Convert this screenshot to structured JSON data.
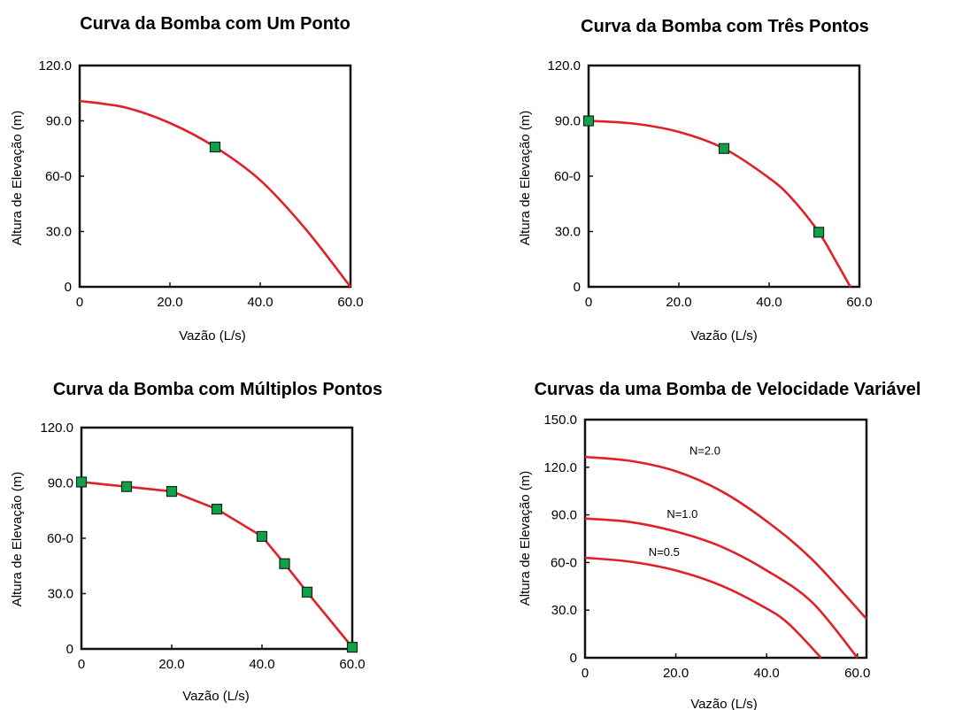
{
  "chart_data": [
    {
      "type": "line",
      "title": "Curva da Bomba com Um Ponto",
      "xlabel": "Vazão (L/s)",
      "ylabel": "Altura de Elevação (m)",
      "xlim": [
        0,
        60
      ],
      "ylim": [
        0,
        120
      ],
      "x_ticks": [
        "0",
        "20.0",
        "40.0",
        "60.0"
      ],
      "y_ticks": [
        "0",
        "30.0",
        "60-0",
        "90.0",
        "120.0"
      ],
      "points": [
        {
          "x": 30,
          "y": 75.8
        }
      ],
      "series": [
        {
          "name": "",
          "x": [
            0,
            10,
            20,
            30,
            40,
            50,
            60
          ],
          "y": [
            100.8,
            97.3,
            88.8,
            75.8,
            57.8,
            31.5,
            0
          ]
        }
      ]
    },
    {
      "type": "line",
      "title": "Curva da Bomba com Três Pontos",
      "xlabel": "Vazão (L/s)",
      "ylabel": "Altura de Elevação (m)",
      "xlim": [
        0,
        60
      ],
      "ylim": [
        0,
        120
      ],
      "x_ticks": [
        "0",
        "20.0",
        "40.0",
        "60.0"
      ],
      "y_ticks": [
        "0",
        "30.0",
        "60-0",
        "90.0",
        "120.0"
      ],
      "points": [
        {
          "x": 0,
          "y": 90
        },
        {
          "x": 30,
          "y": 75
        },
        {
          "x": 51,
          "y": 29.6
        }
      ],
      "series": [
        {
          "name": "",
          "x": [
            0,
            10,
            20,
            30,
            40,
            45,
            51,
            55,
            58
          ],
          "y": [
            90,
            88.5,
            84,
            75,
            59,
            48,
            29.6,
            13,
            0
          ]
        }
      ]
    },
    {
      "type": "line",
      "title": "Curva da Bomba com Múltiplos Pontos",
      "xlabel": "Vazão (L/s)",
      "ylabel": "Altura de Elevação (m)",
      "xlim": [
        0,
        60
      ],
      "ylim": [
        0,
        120
      ],
      "x_ticks": [
        "0",
        "20.0",
        "40.0",
        "60.0"
      ],
      "y_ticks": [
        "0",
        "30.0",
        "60-0",
        "90.0",
        "120.0"
      ],
      "points": [
        {
          "x": 0,
          "y": 90.5
        },
        {
          "x": 10,
          "y": 88
        },
        {
          "x": 20,
          "y": 85.4
        },
        {
          "x": 30,
          "y": 75.8
        },
        {
          "x": 40,
          "y": 61
        },
        {
          "x": 45,
          "y": 46.2
        },
        {
          "x": 50,
          "y": 30.8
        },
        {
          "x": 60,
          "y": 0.9
        }
      ],
      "series": [
        {
          "name": "",
          "x": [
            0,
            10,
            20,
            30,
            40,
            45,
            50,
            60
          ],
          "y": [
            90.5,
            88,
            85.4,
            75.8,
            61,
            46.2,
            30.8,
            0.9
          ]
        }
      ]
    },
    {
      "type": "line",
      "title": "Curvas da uma Bomba de Velocidade Variável",
      "xlabel": "Vazão (L/s)",
      "ylabel": "Altura de Elevação (m)",
      "xlim": [
        0,
        62
      ],
      "ylim": [
        0,
        150
      ],
      "x_ticks": [
        "0",
        "20.0",
        "40.0",
        "60.0"
      ],
      "y_ticks": [
        "0",
        "30.0",
        "60-0",
        "90.0",
        "120.0",
        "150.0"
      ],
      "series": [
        {
          "name": "N=2.0",
          "x": [
            0,
            10,
            20,
            30,
            40,
            50,
            62
          ],
          "y": [
            126.5,
            124,
            117.5,
            105,
            86,
            62,
            24.5
          ]
        },
        {
          "name": "N=1.0",
          "x": [
            0,
            10,
            20,
            30,
            40,
            50,
            60
          ],
          "y": [
            87.7,
            85.5,
            79.5,
            70,
            55,
            35,
            0
          ]
        },
        {
          "name": "N=0.5",
          "x": [
            0,
            10,
            20,
            30,
            40,
            45,
            52
          ],
          "y": [
            63,
            60.5,
            55,
            45.5,
            31,
            21,
            0
          ]
        }
      ]
    }
  ]
}
